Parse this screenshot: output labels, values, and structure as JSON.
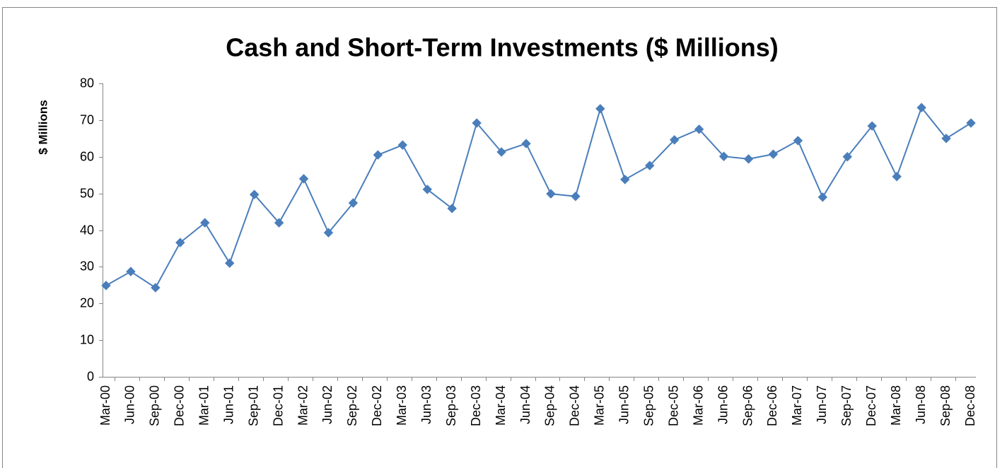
{
  "chart_data": {
    "type": "line",
    "title": "Cash and Short-Term Investments ($ Millions)",
    "y_label": "$ Millions",
    "categories": [
      "Mar-00",
      "Jun-00",
      "Sep-00",
      "Dec-00",
      "Mar-01",
      "Jun-01",
      "Sep-01",
      "Dec-01",
      "Mar-02",
      "Jun-02",
      "Sep-02",
      "Dec-02",
      "Mar-03",
      "Jun-03",
      "Sep-03",
      "Dec-03",
      "Mar-04",
      "Jun-04",
      "Sep-04",
      "Dec-04",
      "Mar-05",
      "Jun-05",
      "Sep-05",
      "Dec-05",
      "Mar-06",
      "Jun-06",
      "Sep-06",
      "Dec-06",
      "Mar-07",
      "Jun-07",
      "Sep-07",
      "Dec-07",
      "Mar-08",
      "Jun-08",
      "Sep-08",
      "Dec-08"
    ],
    "values": [
      24.9,
      28.7,
      24.3,
      36.6,
      42.0,
      31.0,
      49.7,
      42.0,
      54.0,
      39.3,
      47.4,
      60.5,
      63.2,
      51.1,
      45.9,
      69.2,
      61.3,
      63.6,
      49.9,
      49.2,
      73.1,
      53.8,
      57.6,
      64.6,
      67.5,
      60.1,
      59.4,
      60.7,
      64.4,
      49.0,
      60.0,
      68.4,
      54.6,
      73.4,
      65.0,
      69.2
    ],
    "color": "#4a7ebb",
    "marker": "diamond",
    "grid": false,
    "ylim": [
      0,
      80
    ],
    "yticks": [
      0,
      10,
      20,
      30,
      40,
      50,
      60,
      70,
      80
    ]
  }
}
